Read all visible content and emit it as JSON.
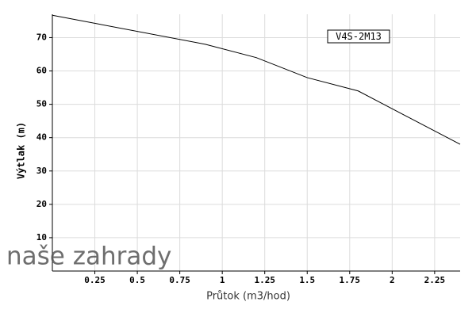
{
  "chart_data": {
    "type": "line",
    "x_label": "Průtok (m3/hod)",
    "y_label": "Výtlak (m)",
    "watermark": "naše zahrady",
    "x": [
      0,
      0.9,
      1.2,
      1.5,
      1.8,
      2.1,
      2.4
    ],
    "series": [
      {
        "name": "V4S-2M13",
        "color": "#000000",
        "values": [
          76.7,
          68,
          64,
          58,
          54,
          46,
          38
        ]
      }
    ],
    "xlim": [
      0,
      2.4
    ],
    "xticks": [
      0.25,
      0.5,
      0.75,
      1,
      1.25,
      1.5,
      1.75,
      2,
      2.25
    ],
    "ylim": [
      0,
      77
    ],
    "yticks": [
      10,
      20,
      30,
      40,
      50,
      60,
      70
    ],
    "grid": true,
    "legend": "upper right"
  }
}
